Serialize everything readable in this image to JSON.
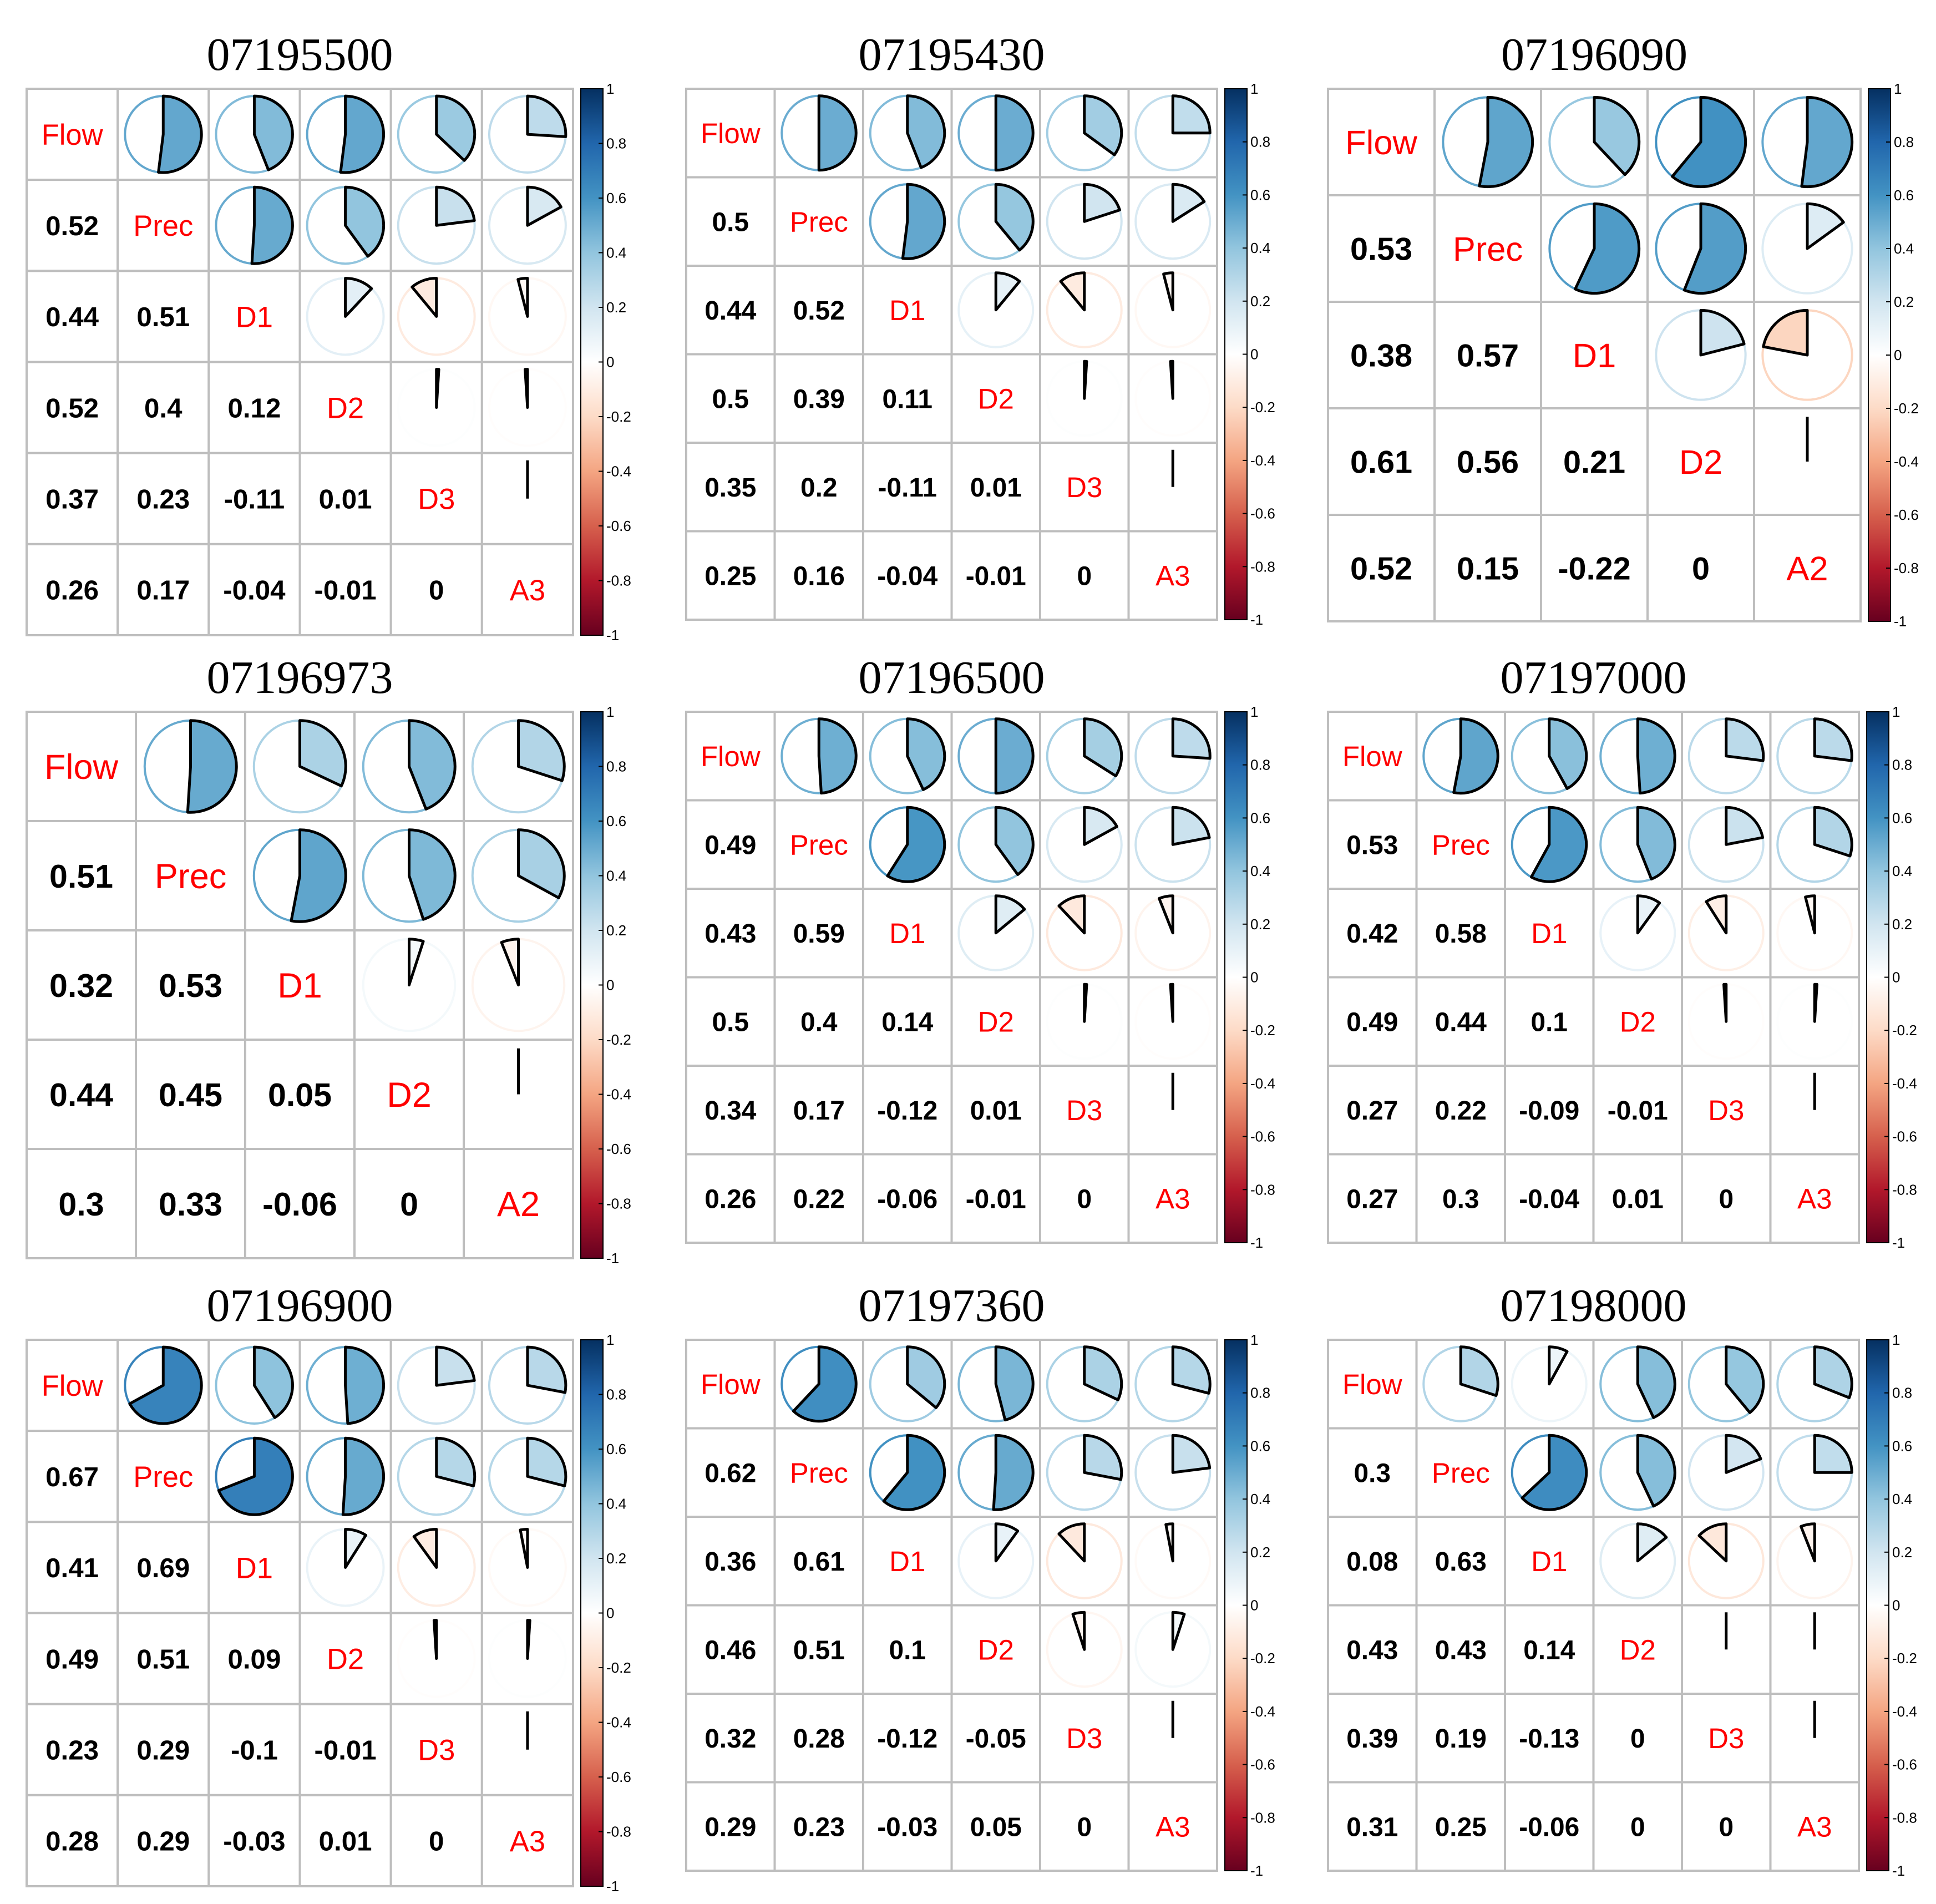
{
  "chart_data": [
    {
      "type": "correlation-matrix",
      "title": "07195500",
      "variables": [
        "Flow",
        "Prec",
        "D1",
        "D2",
        "D3",
        "A3"
      ],
      "values": [
        [
          0.52
        ],
        [
          0.44,
          0.51
        ],
        [
          0.52,
          0.4,
          0.12
        ],
        [
          0.37,
          0.23,
          -0.11,
          0.01
        ],
        [
          0.26,
          0.17,
          -0.04,
          -0.01,
          0
        ]
      ]
    },
    {
      "type": "correlation-matrix",
      "title": "07195430",
      "variables": [
        "Flow",
        "Prec",
        "D1",
        "D2",
        "D3",
        "A3"
      ],
      "values": [
        [
          0.5
        ],
        [
          0.44,
          0.52
        ],
        [
          0.5,
          0.39,
          0.11
        ],
        [
          0.35,
          0.2,
          -0.11,
          0.01
        ],
        [
          0.25,
          0.16,
          -0.04,
          -0.01,
          0
        ]
      ]
    },
    {
      "type": "correlation-matrix",
      "title": "07196090",
      "variables": [
        "Flow",
        "Prec",
        "D1",
        "D2",
        "A2"
      ],
      "values": [
        [
          0.53
        ],
        [
          0.38,
          0.57
        ],
        [
          0.61,
          0.56,
          0.21
        ],
        [
          0.52,
          0.15,
          -0.22,
          0
        ]
      ]
    },
    {
      "type": "correlation-matrix",
      "title": "07196973",
      "variables": [
        "Flow",
        "Prec",
        "D1",
        "D2",
        "A2"
      ],
      "values": [
        [
          0.51
        ],
        [
          0.32,
          0.53
        ],
        [
          0.44,
          0.45,
          0.05
        ],
        [
          0.3,
          0.33,
          -0.06,
          0
        ]
      ]
    },
    {
      "type": "correlation-matrix",
      "title": "07196500",
      "variables": [
        "Flow",
        "Prec",
        "D1",
        "D2",
        "D3",
        "A3"
      ],
      "values": [
        [
          0.49
        ],
        [
          0.43,
          0.59
        ],
        [
          0.5,
          0.4,
          0.14
        ],
        [
          0.34,
          0.17,
          -0.12,
          0.01
        ],
        [
          0.26,
          0.22,
          -0.06,
          -0.01,
          0
        ]
      ]
    },
    {
      "type": "correlation-matrix",
      "title": "07197000",
      "variables": [
        "Flow",
        "Prec",
        "D1",
        "D2",
        "D3",
        "A3"
      ],
      "values": [
        [
          0.53
        ],
        [
          0.42,
          0.58
        ],
        [
          0.49,
          0.44,
          0.1
        ],
        [
          0.27,
          0.22,
          -0.09,
          -0.01
        ],
        [
          0.27,
          0.3,
          -0.04,
          0.01,
          0
        ]
      ]
    },
    {
      "type": "correlation-matrix",
      "title": "07196900",
      "variables": [
        "Flow",
        "Prec",
        "D1",
        "D2",
        "D3",
        "A3"
      ],
      "values": [
        [
          0.67
        ],
        [
          0.41,
          0.69
        ],
        [
          0.49,
          0.51,
          0.09
        ],
        [
          0.23,
          0.29,
          -0.1,
          -0.01
        ],
        [
          0.28,
          0.29,
          -0.03,
          0.01,
          0
        ]
      ]
    },
    {
      "type": "correlation-matrix",
      "title": "07197360",
      "variables": [
        "Flow",
        "Prec",
        "D1",
        "D2",
        "D3",
        "A3"
      ],
      "values": [
        [
          0.62
        ],
        [
          0.36,
          0.61
        ],
        [
          0.46,
          0.51,
          0.1
        ],
        [
          0.32,
          0.28,
          -0.12,
          -0.05
        ],
        [
          0.29,
          0.23,
          -0.03,
          0.05,
          0
        ]
      ]
    },
    {
      "type": "correlation-matrix",
      "title": "07198000",
      "variables": [
        "Flow",
        "Prec",
        "D1",
        "D2",
        "D3",
        "A3"
      ],
      "values": [
        [
          0.3
        ],
        [
          0.08,
          0.63
        ],
        [
          0.43,
          0.43,
          0.14
        ],
        [
          0.39,
          0.19,
          -0.13,
          0
        ],
        [
          0.31,
          0.25,
          -0.06,
          0,
          0
        ]
      ]
    }
  ],
  "colorbar": {
    "ticks": [
      "1",
      "0.8",
      "0.6",
      "0.4",
      "0.2",
      "0",
      "-0.2",
      "-0.4",
      "-0.6",
      "-0.8",
      "-1"
    ],
    "range": [
      -1,
      1
    ],
    "colors": [
      "#67001f",
      "#b2182b",
      "#d6604d",
      "#f4a582",
      "#fddbc7",
      "#ffffff",
      "#d1e5f0",
      "#92c5de",
      "#4393c3",
      "#2166ac",
      "#053061"
    ]
  },
  "colors": {
    "label": "#ff0000",
    "grid": "#bebebe"
  }
}
